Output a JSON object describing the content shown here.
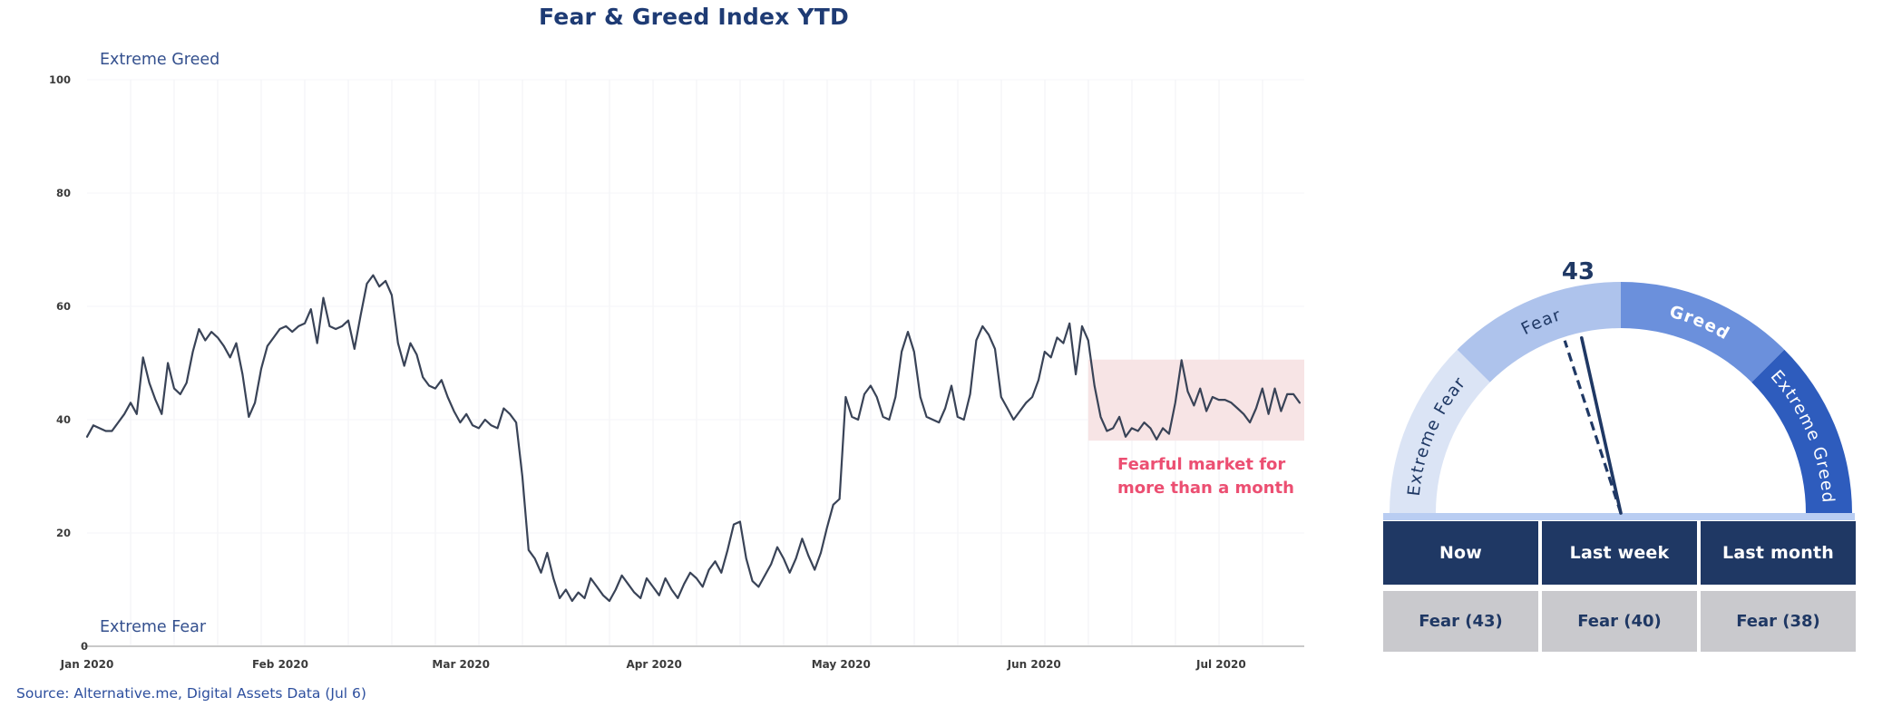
{
  "title": "Fear & Greed Index YTD",
  "source_note": "Source: Alternative.me, Digital Assets Data (Jul 6)",
  "colors": {
    "title_navy": "#1e3b74",
    "navy": "#1f3864",
    "line": "#394357",
    "axis_gray": "#c9c9c9",
    "grid_vertical": "#f1f2f5",
    "grid_horizontal": "#f4f5f8",
    "pink_fill": "#f7e4e5",
    "pink_text": "#ec4f72",
    "zone_label_blue": "#34508e",
    "baseline_blue": "#b9cdf2",
    "table_header_bg": "#1f3864",
    "table_value_bg": "#c9c9cd",
    "source_blue": "#2d4f9e"
  },
  "chart": {
    "zone_label_top": "Extreme Greed",
    "zone_label_bottom": "Extreme Fear",
    "annotation": {
      "line1": "Fearful market for",
      "line2": "more than a month"
    }
  },
  "chart_data": {
    "type": "line",
    "title": "Fear & Greed Index YTD",
    "x_unit": "day",
    "x_range": [
      "Jan 2020",
      "Jul 2020"
    ],
    "x_ticks": [
      "Jan 2020",
      "Feb 2020",
      "Mar 2020",
      "Apr 2020",
      "May 2020",
      "Jun 2020",
      "Jul 2020"
    ],
    "y_ticks": [
      100,
      80,
      60,
      40,
      20,
      0
    ],
    "ylim": [
      0,
      100
    ],
    "grid": "faint",
    "values": [
      37,
      39,
      38.5,
      38,
      38,
      39.5,
      41,
      43,
      41,
      51,
      46.5,
      43.5,
      41,
      50,
      45.5,
      44.5,
      46.5,
      52,
      56,
      54,
      55.5,
      54.5,
      53,
      51,
      53.5,
      48,
      40.5,
      43,
      49,
      53,
      54.5,
      56,
      56.5,
      55.5,
      56.5,
      57,
      59.5,
      53.5,
      61.5,
      56.5,
      56,
      56.5,
      57.5,
      52.5,
      58.5,
      64,
      65.5,
      63.5,
      64.5,
      62,
      53.5,
      49.5,
      53.5,
      51.5,
      47.5,
      46,
      45.5,
      47,
      44,
      41.5,
      39.5,
      41,
      39,
      38.5,
      40,
      39,
      38.5,
      42,
      41,
      39.5,
      30,
      17,
      15.5,
      13,
      16.5,
      12,
      8.5,
      10,
      8,
      9.5,
      8.5,
      12,
      10.5,
      9,
      8,
      10,
      12.5,
      11,
      9.5,
      8.5,
      12,
      10.5,
      9,
      12,
      10,
      8.5,
      11,
      13,
      12,
      10.5,
      13.5,
      15,
      13,
      17,
      21.5,
      22,
      15.5,
      11.5,
      10.5,
      12.5,
      14.5,
      17.5,
      15.5,
      13,
      15.5,
      19,
      16,
      13.5,
      16.5,
      21,
      25,
      26,
      44,
      40.5,
      40,
      44.5,
      46,
      44,
      40.5,
      40,
      44,
      52,
      55.5,
      52,
      44,
      40.5,
      40,
      39.5,
      42,
      46,
      40.5,
      40,
      44.5,
      54,
      56.5,
      55,
      52.5,
      44,
      42,
      40,
      41.5,
      43,
      44,
      47,
      52,
      51,
      54.5,
      53.5,
      57,
      48,
      56.5,
      54,
      46,
      40.5,
      38,
      38.5,
      40.5,
      37,
      38.5,
      38,
      39.5,
      38.5,
      36.5,
      38.5,
      37.5,
      43,
      50.5,
      45,
      42.5,
      45.5,
      41.5,
      44,
      43.5,
      43.5,
      43,
      42,
      41,
      39.5,
      42,
      45.5,
      41,
      45.5,
      41.5,
      44.5,
      44.5,
      43
    ],
    "highlight_region": {
      "label": "Fearful market for more than a month",
      "from_index": 161,
      "to_index": 195,
      "value_top": 50.6,
      "value_bottom": 36.3
    }
  },
  "gauge": {
    "current_value": 43,
    "last_week_value": 40,
    "last_month_value": 38,
    "scale": [
      0,
      100
    ],
    "segments": [
      {
        "label": "Extreme Fear",
        "range": [
          0,
          25
        ],
        "color": "#dbe4f5"
      },
      {
        "label": "Fear",
        "range": [
          25,
          50
        ],
        "color": "#aec3ec"
      },
      {
        "label": "Greed",
        "range": [
          50,
          75
        ],
        "color": "#6b90dc"
      },
      {
        "label": "Extreme Greed",
        "range": [
          75,
          100
        ],
        "color": "#2e5cbd"
      }
    ]
  },
  "table": {
    "headers": [
      "Now",
      "Last week",
      "Last month"
    ],
    "values": [
      "Fear (43)",
      "Fear (40)",
      "Fear (38)"
    ]
  }
}
